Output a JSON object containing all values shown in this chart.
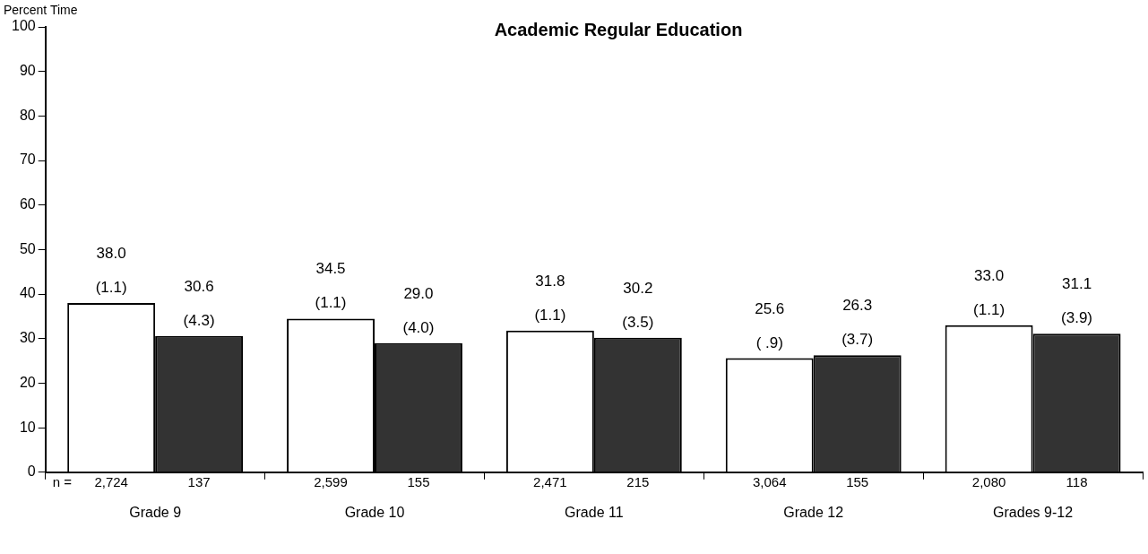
{
  "chart_data": {
    "type": "bar",
    "title": "Academic Regular Education",
    "ylabel": "Percent Time",
    "categories": [
      "Grade 9",
      "Grade 10",
      "Grade 11",
      "Grade 12",
      "Grades 9-12"
    ],
    "series": [
      {
        "color": "#ffffff",
        "values": [
          38.0,
          34.5,
          31.8,
          25.6,
          33.0
        ],
        "value_labels": [
          "38.0\n(1.1)",
          "34.5\n(1.1)",
          "31.8\n(1.1)",
          "25.6\n( .9)",
          "33.0\n(1.1)"
        ]
      },
      {
        "color": "#333333",
        "values": [
          30.6,
          29.0,
          30.2,
          26.3,
          31.1
        ],
        "value_labels": [
          "30.6\n(4.3)",
          "29.0\n(4.0)",
          "30.2\n(3.5)",
          "26.3\n(3.7)",
          "31.1\n(3.9)"
        ]
      }
    ],
    "ylim": [
      0,
      100
    ],
    "yticks": [
      0,
      10,
      20,
      30,
      40,
      50,
      60,
      70,
      80,
      90,
      100
    ],
    "grid": false,
    "legend": false,
    "annotations": [
      "n =",
      "2,724",
      "137",
      "2,599",
      "155",
      "2,471",
      "215",
      "3,064",
      "155",
      "2,080",
      "118"
    ]
  }
}
